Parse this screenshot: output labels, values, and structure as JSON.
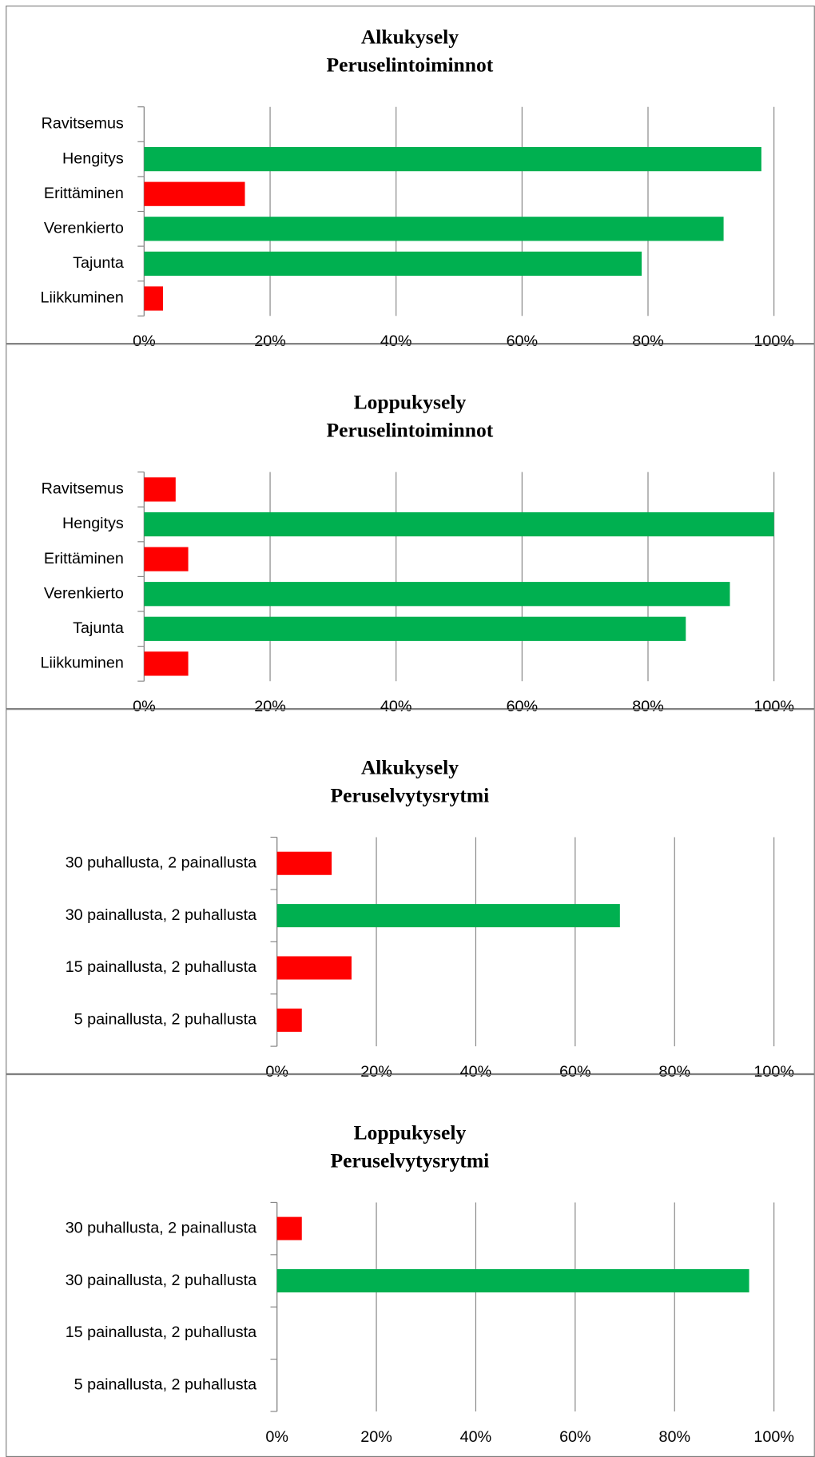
{
  "chart_data": [
    {
      "type": "bar",
      "orientation": "horizontal",
      "title": "Alkukysely",
      "subtitle": "Peruselintoiminnot",
      "categories": [
        "Ravitsemus",
        "Hengitys",
        "Erittäminen",
        "Verenkierto",
        "Tajunta",
        "Liikkuminen"
      ],
      "values": [
        0,
        98,
        16,
        92,
        79,
        3
      ],
      "colors": [
        "#ff0000",
        "#00b050",
        "#ff0000",
        "#00b050",
        "#00b050",
        "#ff0000"
      ],
      "xlim": [
        0,
        100
      ],
      "xticks": [
        {
          "value": 0,
          "label": "0%"
        },
        {
          "value": 20,
          "label": "20%"
        },
        {
          "value": 40,
          "label": "40%"
        },
        {
          "value": 60,
          "label": "60%"
        },
        {
          "value": 80,
          "label": "80%"
        },
        {
          "value": 100,
          "label": "100%"
        }
      ],
      "grid": true
    },
    {
      "type": "bar",
      "orientation": "horizontal",
      "title": "Loppukysely",
      "subtitle": "Peruselintoiminnot",
      "categories": [
        "Ravitsemus",
        "Hengitys",
        "Erittäminen",
        "Verenkierto",
        "Tajunta",
        "Liikkuminen"
      ],
      "values": [
        5,
        100,
        7,
        93,
        86,
        7
      ],
      "colors": [
        "#ff0000",
        "#00b050",
        "#ff0000",
        "#00b050",
        "#00b050",
        "#ff0000"
      ],
      "xlim": [
        0,
        100
      ],
      "xticks": [
        {
          "value": 0,
          "label": "0%"
        },
        {
          "value": 20,
          "label": "20%"
        },
        {
          "value": 40,
          "label": "40%"
        },
        {
          "value": 60,
          "label": "60%"
        },
        {
          "value": 80,
          "label": "80%"
        },
        {
          "value": 100,
          "label": "100%"
        }
      ],
      "grid": true
    },
    {
      "type": "bar",
      "orientation": "horizontal",
      "title": "Alkukysely",
      "subtitle": "Peruselvytysrytmi",
      "categories": [
        "30 puhallusta, 2 painallusta",
        "30 painallusta, 2 puhallusta",
        "15 painallusta, 2 puhallusta",
        "5 painallusta, 2 puhallusta"
      ],
      "values": [
        11,
        69,
        15,
        5
      ],
      "colors": [
        "#ff0000",
        "#00b050",
        "#ff0000",
        "#ff0000"
      ],
      "xlim": [
        0,
        100
      ],
      "xticks": [
        {
          "value": 0,
          "label": "0%"
        },
        {
          "value": 20,
          "label": "20%"
        },
        {
          "value": 40,
          "label": "40%"
        },
        {
          "value": 60,
          "label": "60%"
        },
        {
          "value": 80,
          "label": "80%"
        },
        {
          "value": 100,
          "label": "100%"
        }
      ],
      "grid": true
    },
    {
      "type": "bar",
      "orientation": "horizontal",
      "title": "Loppukysely",
      "subtitle": "Peruselvytysrytmi",
      "categories": [
        "30 puhallusta, 2 painallusta",
        "30 painallusta, 2 puhallusta",
        "15 painallusta, 2 puhallusta",
        "5 painallusta, 2 puhallusta"
      ],
      "values": [
        5,
        95,
        0,
        0
      ],
      "colors": [
        "#ff0000",
        "#00b050",
        "#ff0000",
        "#ff0000"
      ],
      "xlim": [
        0,
        100
      ],
      "xticks": [
        {
          "value": 0,
          "label": "0%"
        },
        {
          "value": 20,
          "label": "20%"
        },
        {
          "value": 40,
          "label": "40%"
        },
        {
          "value": 60,
          "label": "60%"
        },
        {
          "value": 80,
          "label": "80%"
        },
        {
          "value": 100,
          "label": "100%"
        }
      ],
      "grid": true
    }
  ]
}
